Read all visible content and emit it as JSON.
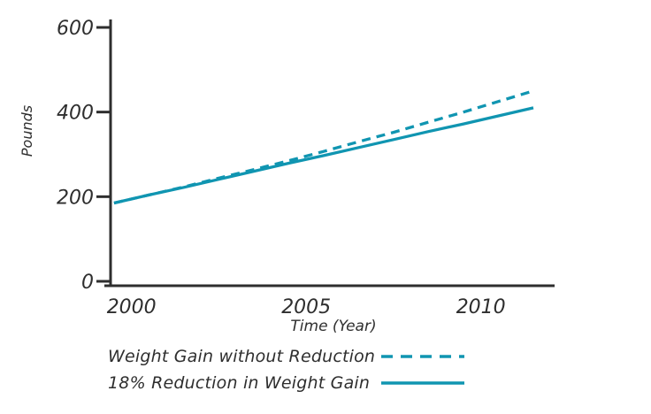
{
  "colors": {
    "line": "#1095b1",
    "axis": "#2e2e2e",
    "text": "#2e2e2e",
    "background": "#ffffff"
  },
  "chart_data": {
    "type": "line",
    "title": "",
    "xlabel": "Time (Year)",
    "ylabel": "Pounds",
    "x_ticks": [
      2000,
      2005,
      2010
    ],
    "y_ticks": [
      0,
      200,
      400,
      600
    ],
    "xlim": [
      1999.4,
      2012.1
    ],
    "ylim": [
      0,
      620
    ],
    "grid": false,
    "legend_position": "below-left",
    "series": [
      {
        "name": "Weight Gain without Reduction",
        "style": "dashed",
        "color": "#1095b1",
        "x": [
          1999.5,
          2000.5,
          2001.5,
          2002.5,
          2003.5,
          2004.5,
          2005.5,
          2006.5,
          2007.5,
          2008.5,
          2009.5,
          2010.5,
          2011.5
        ],
        "y": [
          185,
          204,
          223,
          244,
          264,
          285,
          307,
          330,
          352,
          376,
          400,
          425,
          450
        ]
      },
      {
        "name": "18% Reduction in Weight Gain",
        "style": "solid",
        "color": "#1095b1",
        "x": [
          1999.5,
          2000.5,
          2001.5,
          2002.5,
          2003.5,
          2004.5,
          2005.5,
          2006.5,
          2007.5,
          2008.5,
          2009.5,
          2010.5,
          2011.5
        ],
        "y": [
          185,
          204,
          222,
          241,
          260,
          279,
          297,
          316,
          335,
          354,
          372,
          391,
          410
        ]
      }
    ]
  }
}
